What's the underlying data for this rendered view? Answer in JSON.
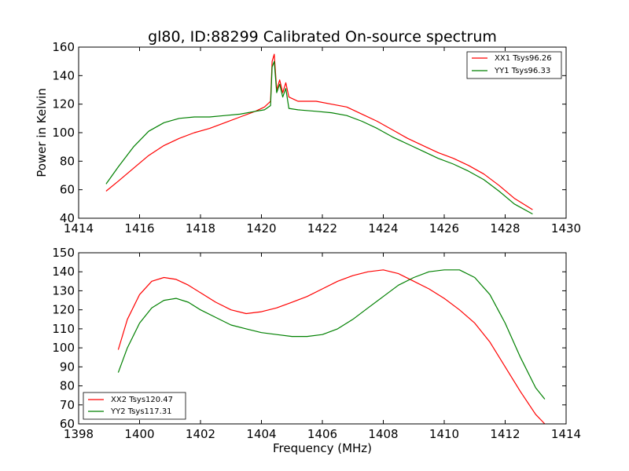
{
  "chart_data": [
    {
      "type": "line",
      "title": "gl80, ID:88299 Calibrated On-source spectrum",
      "xlabel": "",
      "ylabel": "Power in Kelvin",
      "xlim": [
        1414,
        1430
      ],
      "ylim": [
        40,
        160
      ],
      "xticks": [
        "1414",
        "1416",
        "1418",
        "1420",
        "1422",
        "1424",
        "1426",
        "1428",
        "1430"
      ],
      "yticks": [
        "40",
        "60",
        "80",
        "100",
        "120",
        "140",
        "160"
      ],
      "legend_position": "top-right",
      "series": [
        {
          "name": "XX1 Tsys96.26",
          "color": "#ff0000",
          "x": [
            1414.9,
            1415.3,
            1415.8,
            1416.3,
            1416.8,
            1417.3,
            1417.8,
            1418.3,
            1418.8,
            1419.3,
            1419.8,
            1420.1,
            1420.3,
            1420.35,
            1420.42,
            1420.5,
            1420.6,
            1420.7,
            1420.8,
            1420.9,
            1421.2,
            1421.8,
            1422.3,
            1422.8,
            1423.3,
            1423.8,
            1424.3,
            1424.8,
            1425.3,
            1425.8,
            1426.3,
            1426.8,
            1427.3,
            1427.8,
            1428.3,
            1428.9
          ],
          "y": [
            59,
            66,
            75,
            84,
            91,
            96,
            100,
            103,
            107,
            111,
            115,
            118,
            122,
            150,
            155,
            130,
            137,
            128,
            135,
            125,
            122,
            122,
            120,
            118,
            113,
            108,
            102,
            96,
            91,
            86,
            82,
            77,
            71,
            63,
            54,
            46
          ]
        },
        {
          "name": "YY1 Tsys96.33",
          "color": "#008000",
          "x": [
            1414.9,
            1415.3,
            1415.8,
            1416.3,
            1416.8,
            1417.3,
            1417.8,
            1418.3,
            1418.8,
            1419.3,
            1419.8,
            1420.1,
            1420.3,
            1420.35,
            1420.42,
            1420.5,
            1420.6,
            1420.7,
            1420.8,
            1420.9,
            1421.2,
            1421.8,
            1422.3,
            1422.8,
            1423.3,
            1423.8,
            1424.3,
            1424.8,
            1425.3,
            1425.8,
            1426.3,
            1426.8,
            1427.3,
            1427.8,
            1428.3,
            1428.9
          ],
          "y": [
            64,
            76,
            90,
            101,
            107,
            110,
            111,
            111,
            112,
            113,
            115,
            116,
            119,
            146,
            150,
            128,
            134,
            125,
            131,
            117,
            116,
            115,
            114,
            112,
            108,
            103,
            97,
            92,
            87,
            82,
            78,
            73,
            67,
            59,
            50,
            43
          ]
        }
      ]
    },
    {
      "type": "line",
      "title": "",
      "xlabel": "Frequency (MHz)",
      "ylabel": "",
      "xlim": [
        1398,
        1414
      ],
      "ylim": [
        60,
        150
      ],
      "xticks": [
        "1398",
        "1400",
        "1402",
        "1404",
        "1406",
        "1408",
        "1410",
        "1412",
        "1414"
      ],
      "yticks": [
        "60",
        "70",
        "80",
        "90",
        "100",
        "110",
        "120",
        "130",
        "140",
        "150"
      ],
      "legend_position": "bottom-left",
      "series": [
        {
          "name": "XX2 Tsys120.47",
          "color": "#ff0000",
          "x": [
            1399.3,
            1399.6,
            1400.0,
            1400.4,
            1400.8,
            1401.2,
            1401.6,
            1402.0,
            1402.5,
            1403.0,
            1403.5,
            1404.0,
            1404.5,
            1405.0,
            1405.5,
            1406.0,
            1406.5,
            1407.0,
            1407.5,
            1408.0,
            1408.5,
            1409.0,
            1409.5,
            1410.0,
            1410.5,
            1411.0,
            1411.5,
            1412.0,
            1412.5,
            1413.0,
            1413.3
          ],
          "y": [
            99,
            115,
            128,
            135,
            137,
            136,
            133,
            129,
            124,
            120,
            118,
            119,
            121,
            124,
            127,
            131,
            135,
            138,
            140,
            141,
            139,
            135,
            131,
            126,
            120,
            113,
            103,
            90,
            77,
            65,
            60
          ]
        },
        {
          "name": "YY2 Tsys117.31",
          "color": "#008000",
          "x": [
            1399.3,
            1399.6,
            1400.0,
            1400.4,
            1400.8,
            1401.2,
            1401.6,
            1402.0,
            1402.5,
            1403.0,
            1403.5,
            1404.0,
            1404.5,
            1405.0,
            1405.5,
            1406.0,
            1406.5,
            1407.0,
            1407.5,
            1408.0,
            1408.5,
            1409.0,
            1409.5,
            1410.0,
            1410.5,
            1411.0,
            1411.5,
            1412.0,
            1412.5,
            1413.0,
            1413.3
          ],
          "y": [
            87,
            100,
            113,
            121,
            125,
            126,
            124,
            120,
            116,
            112,
            110,
            108,
            107,
            106,
            106,
            107,
            110,
            115,
            121,
            127,
            133,
            137,
            140,
            141,
            141,
            137,
            128,
            113,
            95,
            79,
            73
          ]
        }
      ]
    }
  ]
}
